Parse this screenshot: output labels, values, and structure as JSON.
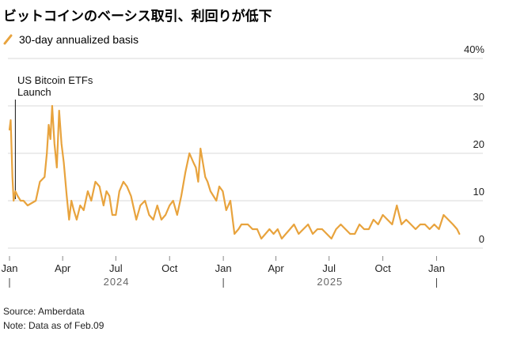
{
  "colors": {
    "series": "#E8A33D",
    "grid": "#d9d9d9",
    "axis": "#444444",
    "tick": "#888888"
  },
  "chart_data": {
    "type": "line",
    "title": "ビットコインのベーシス取引、利回りが低下",
    "legend_position": "top-left",
    "grid": true,
    "series": [
      {
        "name": "30-day annualized basis",
        "x": [
          "2024-01-01",
          "2024-01-03",
          "2024-01-06",
          "2024-01-08",
          "2024-01-11",
          "2024-01-15",
          "2024-01-20",
          "2024-01-25",
          "2024-02-01",
          "2024-02-08",
          "2024-02-15",
          "2024-02-22",
          "2024-03-01",
          "2024-03-05",
          "2024-03-08",
          "2024-03-11",
          "2024-03-14",
          "2024-03-18",
          "2024-03-22",
          "2024-03-26",
          "2024-03-30",
          "2024-04-03",
          "2024-04-08",
          "2024-04-12",
          "2024-04-16",
          "2024-04-20",
          "2024-04-25",
          "2024-05-01",
          "2024-05-07",
          "2024-05-14",
          "2024-05-20",
          "2024-05-27",
          "2024-06-03",
          "2024-06-10",
          "2024-06-15",
          "2024-06-20",
          "2024-06-25",
          "2024-07-01",
          "2024-07-07",
          "2024-07-14",
          "2024-07-20",
          "2024-07-27",
          "2024-08-05",
          "2024-08-12",
          "2024-08-20",
          "2024-08-27",
          "2024-09-03",
          "2024-09-10",
          "2024-09-17",
          "2024-09-24",
          "2024-10-01",
          "2024-10-07",
          "2024-10-14",
          "2024-10-21",
          "2024-10-28",
          "2024-11-04",
          "2024-11-11",
          "2024-11-15",
          "2024-11-19",
          "2024-11-23",
          "2024-11-27",
          "2024-12-01",
          "2024-12-05",
          "2024-12-10",
          "2024-12-15",
          "2024-12-20",
          "2024-12-25",
          "2024-12-31",
          "2025-01-06",
          "2025-01-13",
          "2025-01-20",
          "2025-01-27",
          "2025-02-01",
          "2025-02-05",
          "2025-02-12",
          "2025-02-20",
          "2025-02-28",
          "2025-03-07",
          "2025-03-14",
          "2025-03-21",
          "2025-03-28",
          "2025-04-04",
          "2025-04-11",
          "2025-04-18",
          "2025-04-25",
          "2025-05-02",
          "2025-05-10",
          "2025-05-18",
          "2025-05-26",
          "2025-06-03",
          "2025-06-11",
          "2025-06-19",
          "2025-06-27",
          "2025-07-05",
          "2025-07-13",
          "2025-07-21",
          "2025-07-29",
          "2025-08-06",
          "2025-08-14",
          "2025-08-22",
          "2025-08-30",
          "2025-09-07",
          "2025-09-15",
          "2025-09-23",
          "2025-10-01",
          "2025-10-09",
          "2025-10-17",
          "2025-10-25",
          "2025-11-02",
          "2025-11-10",
          "2025-11-18",
          "2025-11-26",
          "2025-12-04",
          "2025-12-12",
          "2025-12-20",
          "2025-12-28",
          "2026-01-05",
          "2026-01-13",
          "2026-01-21",
          "2026-01-29",
          "2026-02-05",
          "2026-02-09"
        ],
        "y": [
          25,
          27,
          15,
          10,
          12,
          11,
          10,
          10,
          9,
          9.5,
          10,
          14,
          15,
          20,
          26,
          23,
          30,
          22,
          17,
          29,
          22,
          18,
          11,
          6,
          10,
          8,
          6,
          9,
          8,
          12,
          10,
          14,
          13,
          9,
          12,
          11,
          7,
          7,
          12,
          14,
          13,
          11,
          6,
          9,
          10,
          7,
          6,
          9,
          6,
          7,
          9,
          10,
          7,
          11,
          16,
          20,
          18,
          17,
          14,
          21,
          18,
          15,
          14,
          12,
          11,
          10,
          13,
          12,
          8,
          10,
          3,
          4,
          5,
          5,
          5,
          4,
          4,
          2,
          3,
          4,
          3,
          4,
          2,
          3,
          4,
          5,
          3,
          4,
          5,
          3,
          4,
          4,
          3,
          2,
          4,
          5,
          4,
          3,
          3,
          5,
          4,
          4,
          6,
          5,
          7,
          6,
          5,
          9,
          5,
          6,
          5,
          4,
          5,
          5,
          4,
          5,
          4,
          7,
          6,
          5,
          4,
          3
        ]
      }
    ],
    "x_ticks": [
      "Jan",
      "Apr",
      "Jul",
      "Oct",
      "Jan",
      "Apr",
      "Jul",
      "Oct",
      "Jan"
    ],
    "x_years": [
      "2024",
      "2025"
    ],
    "y_ticks": [
      "0",
      "10",
      "20",
      "30",
      "40%"
    ],
    "ylim": [
      0,
      40
    ],
    "annotations": [
      {
        "lines": [
          "US Bitcoin ETFs",
          "Launch"
        ],
        "x": "2024-01-11"
      }
    ]
  },
  "footer": {
    "source": "Source: Amberdata",
    "note": "Note: Data as of Feb.09"
  }
}
